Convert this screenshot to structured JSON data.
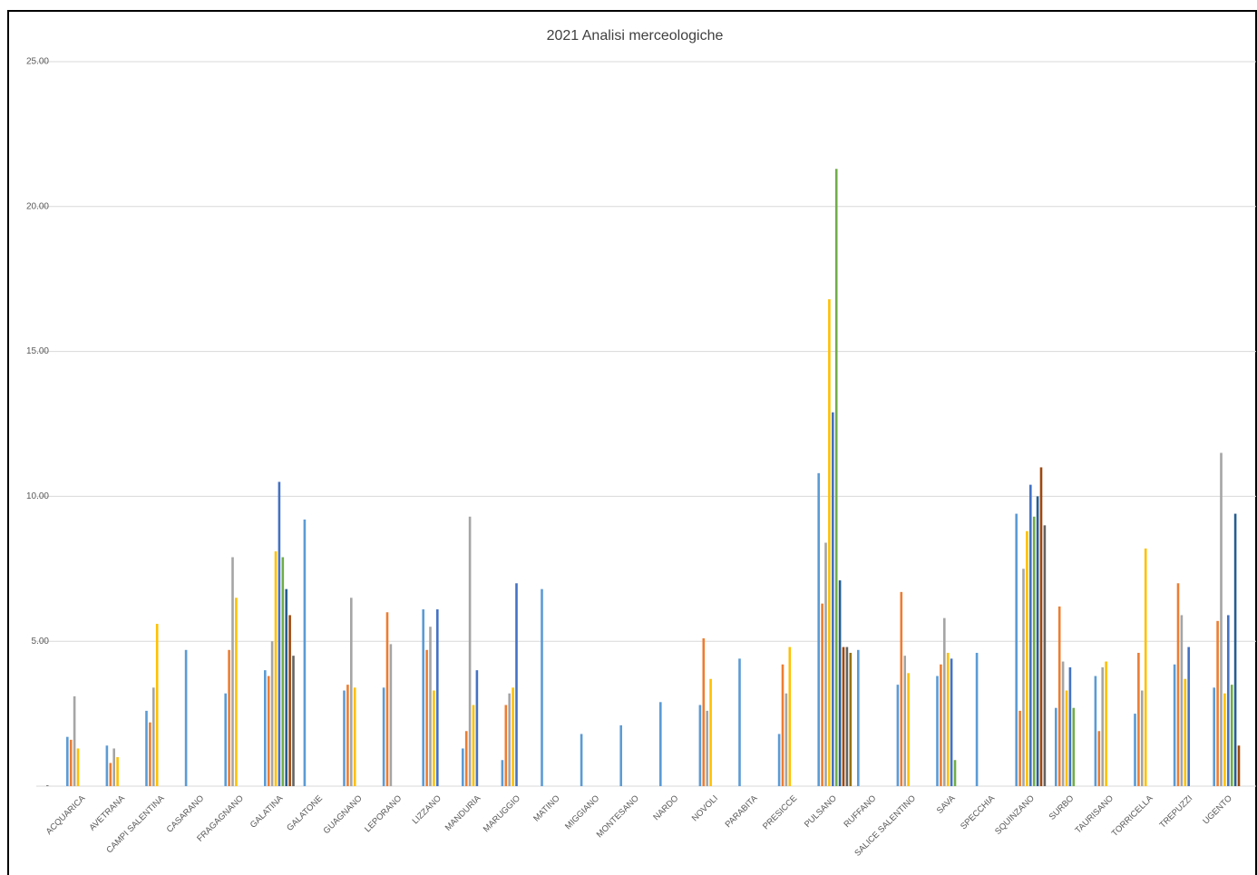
{
  "chart_data": {
    "type": "bar",
    "title": "2021 Analisi merceologiche",
    "categories": [
      "ACQUARICA",
      "AVETRANA",
      "CAMPI SALENTINA",
      "CASARANO",
      "FRAGAGNANO",
      "GALATINA",
      "GALATONE",
      "GUAGNANO",
      "LEPORANO",
      "LIZZANO",
      "MANDURIA",
      "MARUGGIO",
      "MATINO",
      "MIGGIANO",
      "MONTESANO",
      "NARDO",
      "NOVOLI",
      "PARABITA",
      "PRESICCE",
      "PULSANO",
      "RUFFANO",
      "SALICE SALENTINO",
      "SAVA",
      "SPECCHIA",
      "SQUINZANO",
      "SURBO",
      "TAURISANO",
      "TORRICELLA",
      "TREPUZZI",
      "UGENTO"
    ],
    "series": [
      {
        "color": "#5b9bd5",
        "values": [
          1.7,
          1.4,
          2.6,
          4.7,
          3.2,
          4.0,
          9.2,
          3.3,
          3.4,
          6.1,
          1.3,
          0.9,
          6.8,
          1.8,
          2.1,
          2.9,
          2.8,
          4.4,
          1.8,
          10.8,
          4.7,
          3.5,
          3.8,
          4.6,
          9.4,
          2.7,
          3.8,
          2.5,
          4.2,
          3.4
        ]
      },
      {
        "color": "#ed7d31",
        "values": [
          1.6,
          0.8,
          2.2,
          null,
          4.7,
          3.8,
          null,
          3.5,
          6.0,
          4.7,
          1.9,
          2.8,
          null,
          null,
          null,
          null,
          5.1,
          null,
          4.2,
          6.3,
          null,
          6.7,
          4.2,
          null,
          2.6,
          6.2,
          1.9,
          4.6,
          7.0,
          5.7
        ]
      },
      {
        "color": "#a5a5a5",
        "values": [
          3.1,
          1.3,
          3.4,
          null,
          7.9,
          5.0,
          null,
          6.5,
          4.9,
          5.5,
          9.3,
          3.2,
          null,
          null,
          null,
          null,
          2.6,
          null,
          3.2,
          8.4,
          null,
          4.5,
          5.8,
          null,
          7.5,
          4.3,
          4.1,
          3.3,
          5.9,
          11.5
        ]
      },
      {
        "color": "#ffc000",
        "values": [
          1.3,
          1.0,
          5.6,
          null,
          6.5,
          8.1,
          null,
          3.4,
          null,
          3.3,
          2.8,
          3.4,
          null,
          null,
          null,
          null,
          3.7,
          null,
          4.8,
          16.8,
          null,
          3.9,
          4.6,
          null,
          8.8,
          3.3,
          4.3,
          8.2,
          3.7,
          3.2
        ]
      },
      {
        "color": "#4472c4",
        "values": [
          null,
          null,
          null,
          null,
          null,
          10.5,
          null,
          null,
          null,
          6.1,
          4.0,
          7.0,
          null,
          null,
          null,
          null,
          null,
          null,
          null,
          12.9,
          null,
          null,
          4.4,
          null,
          10.4,
          4.1,
          null,
          null,
          4.8,
          5.9
        ]
      },
      {
        "color": "#70ad47",
        "values": [
          null,
          null,
          null,
          null,
          null,
          7.9,
          null,
          null,
          null,
          null,
          null,
          null,
          null,
          null,
          null,
          null,
          null,
          null,
          null,
          21.3,
          null,
          null,
          0.9,
          null,
          9.3,
          2.7,
          null,
          null,
          null,
          3.5
        ]
      },
      {
        "color": "#255e91",
        "values": [
          null,
          null,
          null,
          null,
          null,
          6.8,
          null,
          null,
          null,
          null,
          null,
          null,
          null,
          null,
          null,
          null,
          null,
          null,
          null,
          7.1,
          null,
          null,
          null,
          null,
          10.0,
          null,
          null,
          null,
          null,
          9.4
        ]
      },
      {
        "color": "#9e480e",
        "values": [
          null,
          null,
          null,
          null,
          null,
          5.9,
          null,
          null,
          null,
          null,
          null,
          null,
          null,
          null,
          null,
          null,
          null,
          null,
          null,
          4.8,
          null,
          null,
          null,
          null,
          11.0,
          null,
          null,
          null,
          null,
          1.4
        ]
      },
      {
        "color": "#636363",
        "values": [
          null,
          null,
          null,
          null,
          null,
          4.5,
          null,
          null,
          null,
          null,
          null,
          null,
          null,
          null,
          null,
          null,
          null,
          null,
          null,
          4.8,
          null,
          null,
          null,
          null,
          9.0,
          null,
          null,
          null,
          null,
          null
        ]
      },
      {
        "color": "#997300",
        "values": [
          null,
          null,
          null,
          null,
          null,
          null,
          null,
          null,
          null,
          null,
          null,
          null,
          null,
          null,
          null,
          null,
          null,
          null,
          null,
          4.6,
          null,
          null,
          null,
          null,
          null,
          null,
          null,
          null,
          null,
          null
        ]
      }
    ],
    "ylim": [
      0,
      25
    ],
    "yticks": [
      {
        "value": 0,
        "label": "-"
      },
      {
        "value": 5,
        "label": "5.00"
      },
      {
        "value": 10,
        "label": "10.00"
      },
      {
        "value": 15,
        "label": "15.00"
      },
      {
        "value": 20,
        "label": "20.00"
      },
      {
        "value": 25,
        "label": "25.00"
      }
    ],
    "grid": true
  }
}
